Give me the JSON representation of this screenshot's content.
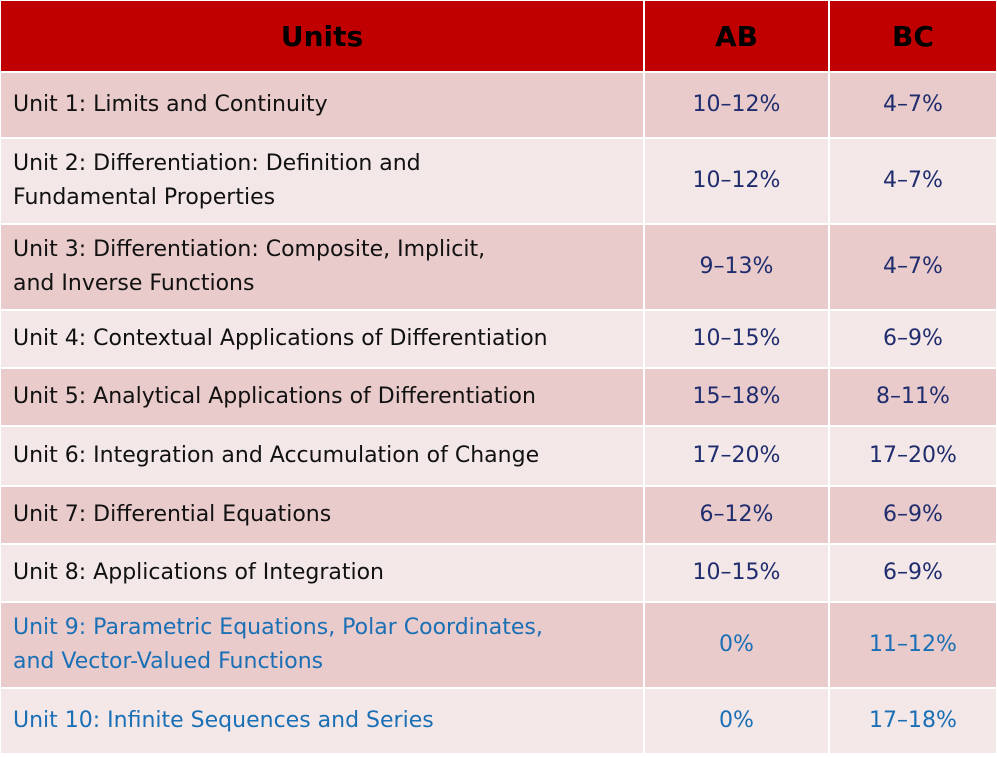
{
  "table": {
    "headers": [
      "Units",
      "AB",
      "BC"
    ],
    "rows": [
      {
        "unit": "Unit 1: Limits and Continuity",
        "ab": "10–12%",
        "bc": "4–7%"
      },
      {
        "unit_line1": "Unit 2: Differentiation: Definition and",
        "unit_line2": "Fundamental Properties",
        "ab": "10–12%",
        "bc": "4–7%"
      },
      {
        "unit_line1": "Unit 3: Differentiation: Composite, Implicit,",
        "unit_line2": "and Inverse Functions",
        "ab": "9–13%",
        "bc": "4–7%"
      },
      {
        "unit": "Unit 4: Contextual Applications of Differentiation",
        "ab": "10–15%",
        "bc": "6–9%"
      },
      {
        "unit": "Unit 5: Analytical Applications of Differentiation",
        "ab": "15–18%",
        "bc": "8–11%"
      },
      {
        "unit": "Unit 6: Integration and Accumulation of Change",
        "ab": "17–20%",
        "bc": "17–20%"
      },
      {
        "unit": "Unit 7: Differential Equations",
        "ab": "6–12%",
        "bc": "6–9%"
      },
      {
        "unit": "Unit 8: Applications of Integration",
        "ab": "10–15%",
        "bc": "6–9%"
      },
      {
        "unit_line1": "Unit 9: Parametric Equations, Polar Coordinates,",
        "unit_line2": "and Vector-Valued Functions",
        "ab": "0%",
        "bc": "11–12%"
      },
      {
        "unit": "Unit 10: Infinite Sequences and Series",
        "ab": "0%",
        "bc": "17–18%"
      }
    ]
  },
  "colors": {
    "header_bg": "#c00000",
    "row_odd_bg": "#e9cbcb",
    "row_even_bg": "#f4e7e7",
    "percent_text": "#1f2d6e",
    "bc_only_text": "#1a6fb5"
  }
}
